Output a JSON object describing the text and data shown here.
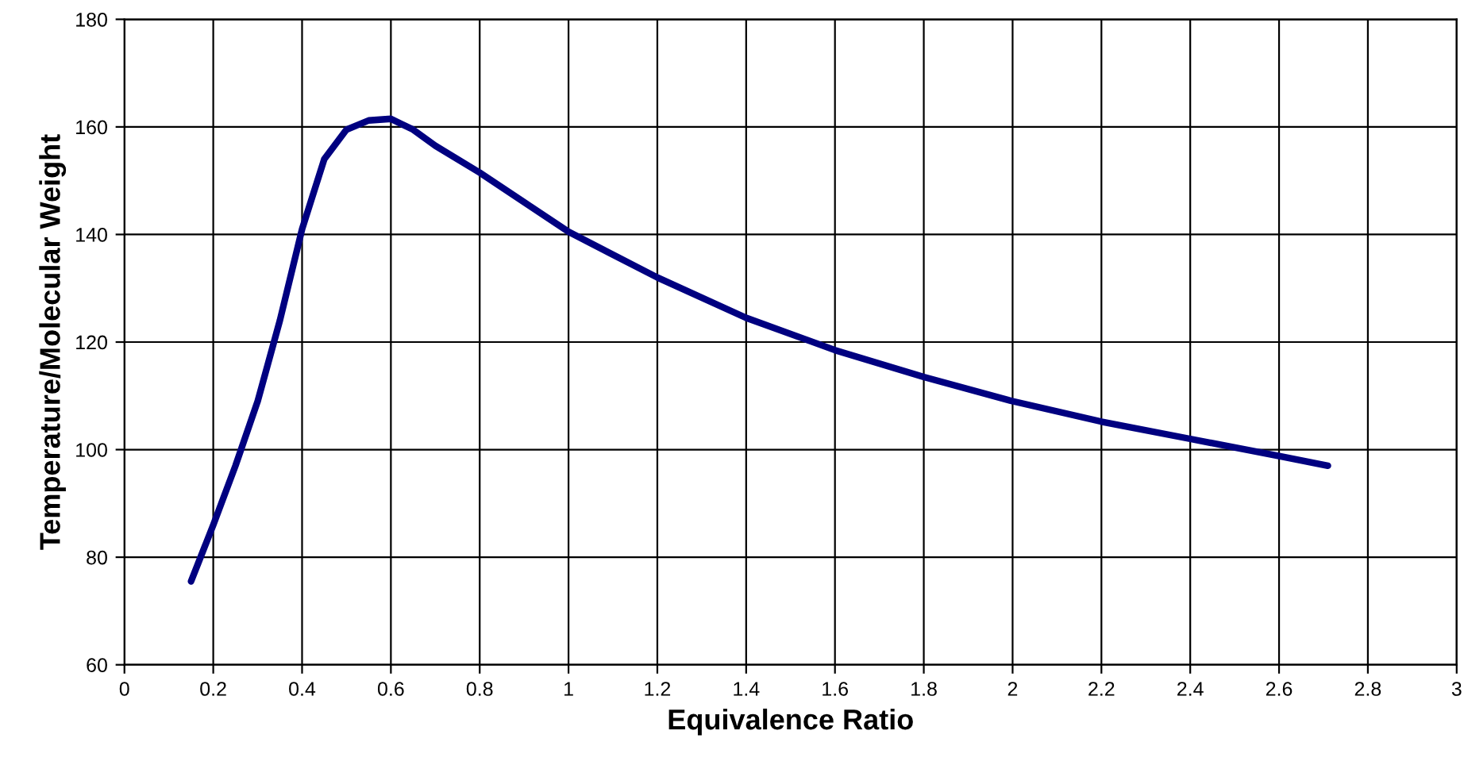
{
  "chart_data": {
    "type": "line",
    "xlabel": "Equivalence Ratio",
    "ylabel": "Temperature/Molecular Weight",
    "x": [
      0.15,
      0.2,
      0.25,
      0.3,
      0.35,
      0.4,
      0.45,
      0.5,
      0.55,
      0.6,
      0.65,
      0.7,
      0.8,
      0.9,
      1.0,
      1.2,
      1.4,
      1.6,
      1.8,
      2.0,
      2.2,
      2.4,
      2.6,
      2.71
    ],
    "series": [
      {
        "color": "#000080",
        "values": [
          75.5,
          86,
          97,
          109,
          124,
          141,
          154,
          159.5,
          161.2,
          161.5,
          159.5,
          156.5,
          151.5,
          146,
          140.5,
          132,
          124.5,
          118.5,
          113.5,
          109,
          105.2,
          102,
          98.8,
          97
        ]
      }
    ],
    "xlim": [
      0,
      3
    ],
    "xticks": [
      0,
      0.2,
      0.4,
      0.6,
      0.8,
      1,
      1.2,
      1.4,
      1.6,
      1.8,
      2,
      2.2,
      2.4,
      2.6,
      2.8,
      3
    ],
    "ylim": [
      60,
      180
    ],
    "yticks": [
      60,
      80,
      100,
      120,
      140,
      160,
      180
    ],
    "grid": true,
    "legend": false,
    "marker": "none",
    "line_style": "solid"
  }
}
